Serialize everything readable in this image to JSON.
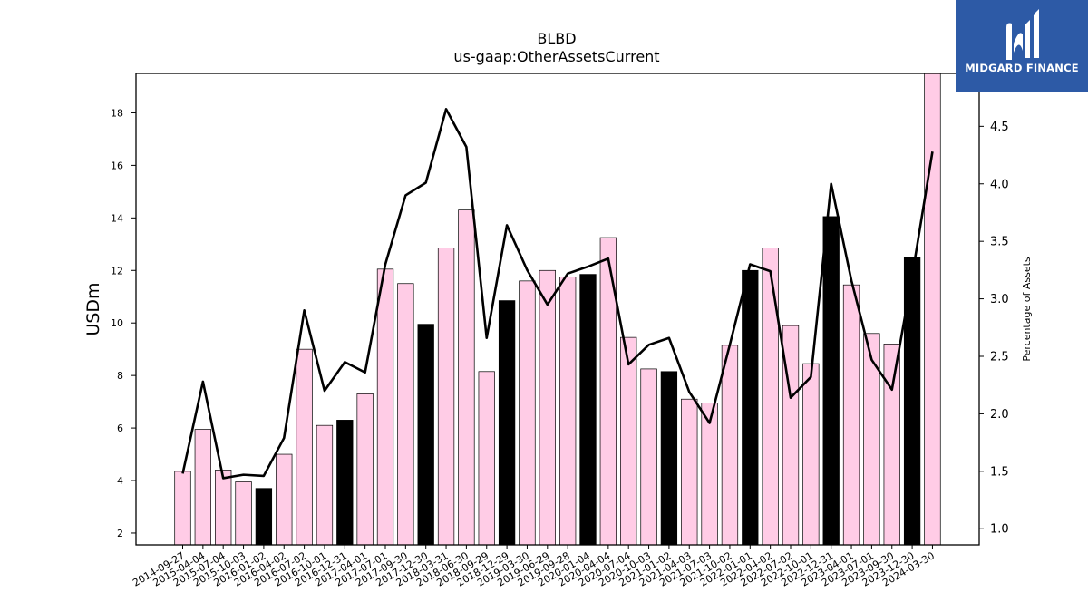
{
  "logo": {
    "text": "MIDGARD FINANCE",
    "icon": "midgard-m-icon"
  },
  "colors": {
    "bar_normal": "#ffcce6",
    "bar_highlight": "#000000",
    "line": "#000000"
  },
  "chart_data": {
    "type": "bar",
    "title": "BLBD",
    "subtitle": "us-gaap:OtherAssetsCurrent",
    "ylabel": "USDm",
    "y2label": "Percentage of Assets",
    "ylim": [
      1.55,
      19.5
    ],
    "y2lim": [
      0.86,
      4.96
    ],
    "yticks": [
      2,
      4,
      6,
      8,
      10,
      12,
      14,
      16,
      18
    ],
    "y2ticks": [
      1.0,
      1.5,
      2.0,
      2.5,
      3.0,
      3.5,
      4.0,
      4.5
    ],
    "categories": [
      "2014-09-27",
      "2015-04-04",
      "2015-07-04",
      "2015-10-03",
      "2016-01-02",
      "2016-04-02",
      "2016-07-02",
      "2016-10-01",
      "2016-12-31",
      "2017-04-01",
      "2017-07-01",
      "2017-09-30",
      "2017-12-30",
      "2018-03-31",
      "2018-06-30",
      "2018-09-29",
      "2018-12-29",
      "2019-03-30",
      "2019-06-29",
      "2019-09-28",
      "2020-01-04",
      "2020-04-04",
      "2020-07-04",
      "2020-10-03",
      "2021-01-02",
      "2021-04-03",
      "2021-07-03",
      "2021-10-02",
      "2022-01-01",
      "2022-04-02",
      "2022-07-02",
      "2022-10-01",
      "2022-12-31",
      "2023-04-01",
      "2023-07-01",
      "2023-09-30",
      "2023-12-30",
      "2024-03-30"
    ],
    "series": [
      {
        "type": "bar",
        "values": [
          4.35,
          5.95,
          4.4,
          3.95,
          3.7,
          5.0,
          9.0,
          6.1,
          6.3,
          7.3,
          12.05,
          11.5,
          9.95,
          12.85,
          14.3,
          8.15,
          10.85,
          11.6,
          12.0,
          11.75,
          11.85,
          13.25,
          9.45,
          8.25,
          8.15,
          7.1,
          6.95,
          9.15,
          12.0,
          12.85,
          9.9,
          8.45,
          14.05,
          11.45,
          9.6,
          9.2,
          12.5,
          19.5
        ],
        "highlight": [
          false,
          false,
          false,
          false,
          true,
          false,
          false,
          false,
          true,
          false,
          false,
          false,
          true,
          false,
          false,
          false,
          true,
          false,
          false,
          false,
          true,
          false,
          false,
          false,
          true,
          false,
          false,
          false,
          true,
          false,
          false,
          false,
          true,
          false,
          false,
          false,
          true,
          false
        ]
      },
      {
        "type": "line",
        "axis": "right",
        "values": [
          1.48,
          2.28,
          1.44,
          1.47,
          1.46,
          1.79,
          2.9,
          2.2,
          2.45,
          2.36,
          3.3,
          3.9,
          4.01,
          4.65,
          4.32,
          2.66,
          3.64,
          3.25,
          2.95,
          3.22,
          3.28,
          3.35,
          2.43,
          2.6,
          2.66,
          2.19,
          1.92,
          2.6,
          3.3,
          3.24,
          2.14,
          2.32,
          4.0,
          3.16,
          2.47,
          2.21,
          3.2,
          4.28
        ]
      }
    ]
  }
}
